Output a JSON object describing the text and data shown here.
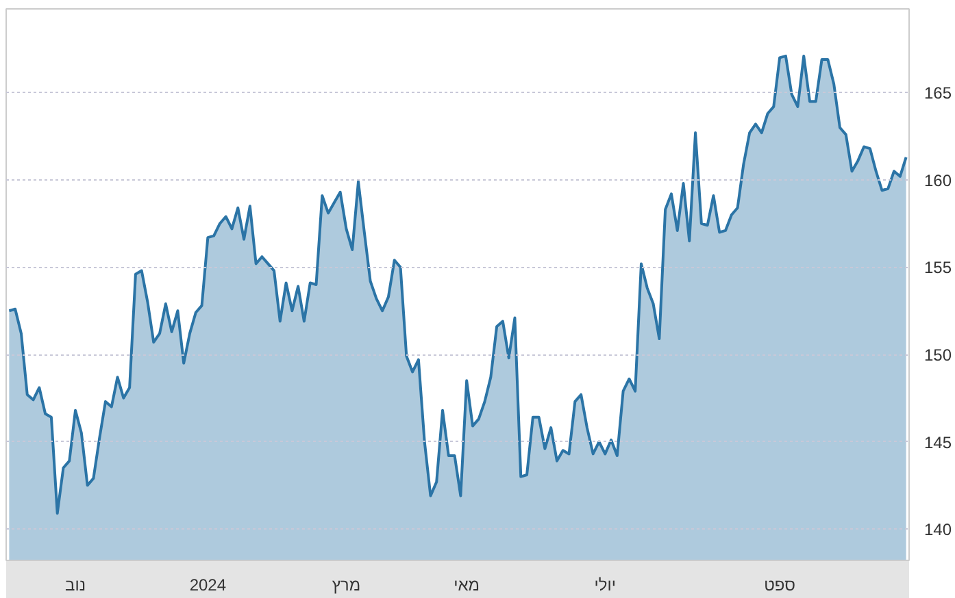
{
  "chart_data": {
    "type": "area",
    "categories": [
      null,
      null,
      null,
      null,
      null,
      null,
      null,
      null,
      null,
      null,
      null,
      "נוב",
      null,
      null,
      null,
      null,
      null,
      null,
      null,
      null,
      null,
      null,
      null,
      null,
      null,
      null,
      null,
      null,
      null,
      null,
      null,
      null,
      null,
      "2024",
      null,
      null,
      null,
      null,
      null,
      null,
      null,
      null,
      null,
      null,
      null,
      null,
      null,
      null,
      null,
      null,
      null,
      null,
      null,
      null,
      null,
      null,
      "מרץ",
      null,
      null,
      null,
      null,
      null,
      null,
      null,
      null,
      null,
      null,
      null,
      null,
      null,
      null,
      null,
      null,
      null,
      null,
      null,
      "מאי",
      null,
      null,
      null,
      null,
      null,
      null,
      null,
      null,
      null,
      null,
      null,
      null,
      null,
      null,
      null,
      null,
      null,
      null,
      null,
      null,
      null,
      null,
      "יולי",
      null,
      null,
      null,
      null,
      null,
      null,
      null,
      null,
      null,
      null,
      null,
      null,
      null,
      null,
      null,
      null,
      null,
      null,
      null,
      null,
      null,
      null,
      null,
      null,
      null,
      null,
      null,
      null,
      "ספט",
      null,
      null,
      null,
      null,
      null,
      null,
      null,
      null,
      null,
      null,
      null,
      null,
      null,
      null,
      null,
      null,
      null,
      null,
      null,
      null,
      null
    ],
    "series": [
      {
        "color": "#2b74a6",
        "values": [
          152.5,
          152.6,
          151.2,
          147.7,
          147.4,
          148.1,
          146.6,
          146.4,
          140.9,
          143.5,
          143.9,
          146.8,
          145.5,
          142.5,
          142.9,
          145.2,
          147.3,
          147.0,
          148.7,
          147.5,
          148.1,
          154.6,
          154.8,
          153.0,
          150.7,
          151.2,
          152.9,
          151.3,
          152.5,
          149.5,
          151.2,
          152.4,
          152.8,
          156.7,
          156.8,
          157.5,
          157.9,
          157.2,
          158.4,
          156.6,
          158.5,
          155.2,
          155.6,
          155.2,
          154.8,
          151.9,
          154.1,
          152.5,
          153.9,
          151.9,
          154.1,
          154.0,
          159.1,
          158.1,
          158.7,
          159.3,
          157.2,
          156.0,
          159.9,
          157.0,
          154.2,
          153.2,
          152.5,
          153.3,
          155.4,
          155.0,
          149.9,
          149.0,
          149.7,
          145.0,
          141.9,
          142.7,
          146.8,
          144.2,
          144.2,
          141.9,
          148.5,
          145.9,
          146.3,
          147.3,
          148.7,
          151.6,
          151.9,
          149.8,
          152.1,
          143.0,
          143.1,
          146.4,
          146.4,
          144.6,
          145.8,
          143.9,
          144.5,
          144.3,
          147.3,
          147.7,
          145.8,
          144.3,
          145.0,
          144.3,
          145.1,
          144.2,
          147.9,
          148.6,
          147.9,
          155.2,
          153.8,
          152.9,
          150.9,
          158.3,
          159.2,
          157.1,
          159.8,
          156.5,
          162.7,
          157.5,
          157.4,
          159.1,
          157.0,
          157.1,
          158.0,
          158.4,
          160.9,
          162.7,
          163.2,
          162.7,
          163.8,
          164.2,
          167.0,
          167.1,
          164.9,
          164.2,
          167.1,
          164.5,
          164.5,
          166.9,
          166.9,
          165.5,
          163.0,
          162.6,
          160.5,
          161.1,
          161.9,
          161.8,
          160.5,
          159.4,
          159.5,
          160.5,
          160.2,
          161.3
        ]
      }
    ],
    "ylim": [
      138.2,
      169.8
    ],
    "yticks": [
      140,
      145,
      150,
      155,
      160,
      165
    ],
    "grid": "y"
  }
}
